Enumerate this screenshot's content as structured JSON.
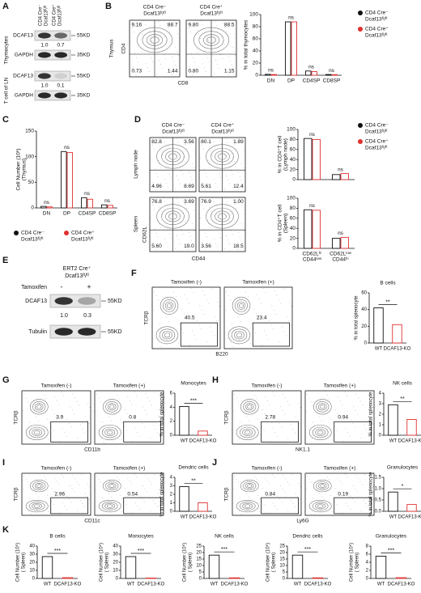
{
  "A": {
    "letter": "A",
    "columns": [
      [
        "CD4 Cre⁻",
        "Dcaf13ᶠˡ/ᶠˡ"
      ],
      [
        "CD4 Cre⁺",
        "Dcaf13ᶠˡ/ᶠˡ"
      ]
    ],
    "groups": [
      "Thymocytes",
      "T cell of LN"
    ],
    "rows": [
      {
        "label": "DCAF13",
        "size": "55KD",
        "ratios": [
          "1.0",
          "0.7"
        ]
      },
      {
        "label": "GAPDH",
        "size": "35KD"
      },
      {
        "label": "DCAF13",
        "size": "55KD",
        "ratios": [
          "1.0",
          "0.1"
        ]
      },
      {
        "label": "GAPDH",
        "size": "35KD"
      }
    ]
  },
  "B": {
    "letter": "B",
    "tissue": "Thymus",
    "ylabel": "CD4",
    "xlabel": "CD8",
    "plots": [
      {
        "header": [
          "CD4 Cre⁻",
          "Dcaf13ᶠˡ/ᶠˡ"
        ],
        "numbers": [
          "9.16",
          "88.7",
          "0.73",
          "1.44"
        ]
      },
      {
        "header": [
          "CD4 Cre⁺",
          "Dcaf13ᶠˡ/ᶠˡ"
        ],
        "numbers": [
          "9.80",
          "88.5",
          "0.80",
          "1.15"
        ]
      }
    ],
    "chart": {
      "type": "bar",
      "ylabel": "% in total thymocytes",
      "categories": [
        "DN",
        "DP",
        "CD4SP",
        "CD8SP"
      ],
      "series": [
        {
          "name": [
            "CD4 Cre⁻",
            "Dcaf13ᶠˡ/ᶠˡ"
          ],
          "color": "#111111",
          "values": [
            1.5,
            88,
            7,
            1.2
          ]
        },
        {
          "name": [
            "CD4 Cre⁺",
            "Dcaf13ᶠˡ/ᶠˡ"
          ],
          "color": "#e03030",
          "values": [
            1.2,
            88,
            6,
            1.0
          ]
        }
      ],
      "ylim": [
        0,
        100
      ],
      "yticks": [
        0,
        20,
        40,
        60,
        80,
        100
      ],
      "sig": [
        "ns",
        "ns",
        "ns",
        "ns"
      ]
    }
  },
  "C": {
    "letter": "C",
    "chart": {
      "type": "bar",
      "ylabel": [
        "Cell Number (10⁶)",
        "(Thymus)"
      ],
      "categories": [
        "DN",
        "DP",
        "CD4SP",
        "CD8SP"
      ],
      "series": [
        {
          "name": [
            "CD4 Cre⁻",
            "Dcaf13ᶠˡ/ᶠˡ"
          ],
          "color": "#111111",
          "values": [
            3,
            110,
            20,
            6
          ]
        },
        {
          "name": [
            "CD4 Cre⁺",
            "Dcaf13ᶠˡ/ᶠˡ"
          ],
          "color": "#e03030",
          "values": [
            2,
            108,
            17,
            5
          ]
        }
      ],
      "ylim": [
        0,
        150
      ],
      "yticks": [
        0,
        50,
        100,
        150
      ],
      "sig": [
        "ns",
        "ns",
        "ns",
        "ns"
      ]
    }
  },
  "D": {
    "letter": "D",
    "tissues": [
      "Lymph node",
      "Spleen"
    ],
    "ylabel": "CD62L",
    "xlabel": "CD44",
    "headers": [
      [
        "CD4 Cre⁻",
        "Dcaf13ᶠˡ/ᶠˡ"
      ],
      [
        "CD4 Cre⁺",
        "Dcaf13ᶠˡ/ᶠˡ"
      ]
    ],
    "plots": [
      [
        "82.8",
        "3.56",
        "4.96",
        "8.69"
      ],
      [
        "80.1",
        "1.89",
        "5.61",
        "12.4"
      ],
      [
        "76.8",
        "3.69",
        "5.60",
        "19.0"
      ],
      [
        "76.9",
        "1.00",
        "3.56",
        "18.5"
      ]
    ],
    "charts": [
      {
        "type": "bar",
        "ylabel": [
          "% in CD4⁺T cell",
          "(Lymph node)"
        ],
        "series": [
          {
            "name": [
              "CD4 Cre⁻",
              "Dcaf13ᶠˡ/ᶠˡ"
            ],
            "color": "#111111",
            "values": [
              82,
              10
            ]
          },
          {
            "name": [
              "CD4 Cre⁺",
              "Dcaf13ᶠˡ/ᶠˡ"
            ],
            "color": "#e03030",
            "values": [
              80,
              12
            ]
          }
        ],
        "ylim": [
          0,
          100
        ],
        "yticks": [
          0,
          20,
          40,
          60,
          80,
          100
        ],
        "sig": [
          "ns",
          "ns"
        ]
      },
      {
        "type": "bar",
        "ylabel": [
          "% in CD4⁺T cell",
          "(Spleen)"
        ],
        "categories": [
          [
            "CD62Lʰⁱ",
            "CD44ˡᵒʷ"
          ],
          [
            "CD62Lˡᵒʷ",
            "CD44ʰⁱ"
          ]
        ],
        "series": [
          {
            "color": "#111111",
            "values": [
              77,
              20
            ]
          },
          {
            "color": "#e03030",
            "values": [
              76,
              22
            ]
          }
        ],
        "ylim": [
          0,
          100
        ],
        "yticks": [
          0,
          20,
          40,
          60,
          80,
          100
        ],
        "sig": [
          "ns",
          "ns"
        ]
      }
    ]
  },
  "E": {
    "letter": "E",
    "genotype": [
      "ERT2 Cre⁺",
      "Dcaf13ᶠˡ/ᶠˡ"
    ],
    "treatment": "Tamoxifen",
    "lanes": [
      "-",
      "+"
    ],
    "rows": [
      {
        "label": "DCAF13",
        "size": "55KD",
        "ratios": [
          "1.0",
          "0.3"
        ]
      },
      {
        "label": "Tubulin",
        "size": "55KD"
      }
    ]
  },
  "F": {
    "letter": "F",
    "ylabel": "TCRβ",
    "xlabel": "B220",
    "plots": [
      {
        "header": "Tamoxifen (-)",
        "number": "40.5"
      },
      {
        "header": "Tamoxifen (+)",
        "number": "23.4"
      }
    ],
    "chart": {
      "type": "bar",
      "title": "B cells",
      "ylabel": "% in total splenocyte",
      "categories": [
        "WT",
        "DCAF13-KO"
      ],
      "values": [
        42,
        22
      ],
      "colors": [
        "#111111",
        "#e03030"
      ],
      "ylim": [
        0,
        60
      ],
      "yticks": [
        0,
        20,
        40,
        60
      ],
      "sig": "**"
    }
  },
  "G": {
    "letter": "G",
    "ylabel": "TCRβ",
    "xlabel": "CD11b",
    "plots": [
      {
        "header": "Tamoxifen (-)",
        "number": "3.9"
      },
      {
        "header": "Tamoxifen (+)",
        "number": "0.8"
      }
    ],
    "chart": {
      "type": "bar",
      "title": "Monocytes",
      "ylabel": "% in total splenocyte",
      "categories": [
        "WT",
        "DCAF13-KO"
      ],
      "values": [
        4.1,
        0.6
      ],
      "colors": [
        "#111111",
        "#e03030"
      ],
      "ylim": [
        0,
        6
      ],
      "yticks": [
        0,
        2,
        4,
        6
      ],
      "sig": "***"
    }
  },
  "H": {
    "letter": "H",
    "ylabel": "TCRβ",
    "xlabel": "NK1.1",
    "plots": [
      {
        "header": "Tamoxifen (-)",
        "number": "2.78"
      },
      {
        "header": "Tamoxifen (+)",
        "number": "0.94"
      }
    ],
    "chart": {
      "type": "bar",
      "title": "NK cells",
      "ylabel": "% in total splenocyte",
      "categories": [
        "WT",
        "DCAF13-KO"
      ],
      "values": [
        2.9,
        1.5
      ],
      "colors": [
        "#111111",
        "#e03030"
      ],
      "ylim": [
        0,
        4
      ],
      "yticks": [
        0,
        1,
        2,
        3,
        4
      ],
      "sig": "**"
    }
  },
  "I": {
    "letter": "I",
    "ylabel": "TCRβ",
    "xlabel": "CD11c",
    "plots": [
      {
        "header": "Tamoxifen (-)",
        "number": "2.96"
      },
      {
        "header": "Tamoxifen (+)",
        "number": "0.54"
      }
    ],
    "chart": {
      "type": "bar",
      "title": "Dendric cells",
      "ylabel": "% in total splenocyte",
      "categories": [
        "WT",
        "DCAF13-KO"
      ],
      "values": [
        2.9,
        1.0
      ],
      "colors": [
        "#111111",
        "#e03030"
      ],
      "ylim": [
        0,
        4
      ],
      "yticks": [
        0,
        1,
        2,
        3,
        4
      ],
      "sig": "**"
    }
  },
  "J": {
    "letter": "J",
    "ylabel": "TCRβ",
    "xlabel": "Ly6G",
    "plots": [
      {
        "header": "Tamoxifen (-)",
        "number": "0.84"
      },
      {
        "header": "Tamoxifen (+)",
        "number": "0.19"
      }
    ],
    "chart": {
      "type": "bar",
      "title": "Granulocytes",
      "ylabel": "% in total splenocyte",
      "categories": [
        "WT",
        "DCAF13-KO"
      ],
      "values": [
        0.85,
        0.3
      ],
      "colors": [
        "#111111",
        "#e03030"
      ],
      "ylim": [
        0,
        1.5
      ],
      "yticks": [
        {
          "value": 0,
          "label": "0.0"
        },
        0.5,
        {
          "value": 1,
          "label": "1.0"
        },
        1.5
      ],
      "sig": "*"
    }
  },
  "K": {
    "letter": "K",
    "charts": [
      {
        "type": "bar",
        "title": "B cells",
        "ylabel": [
          "Cell Number (10⁶)",
          "( Spleen)"
        ],
        "categories": [
          "WT",
          "DCAF13-KO"
        ],
        "values": [
          27,
          1
        ],
        "colors": [
          "#111111",
          "#e03030"
        ],
        "ylim": [
          0,
          40
        ],
        "yticks": [
          0,
          10,
          20,
          30,
          40
        ],
        "sig": "***"
      },
      {
        "type": "bar",
        "title": "Monocytes",
        "ylabel": [
          "Cell Number (10⁶)",
          "( Spleen)"
        ],
        "categories": [
          "WT",
          "DCAF13-KO"
        ],
        "values": [
          27,
          0.5
        ],
        "colors": [
          "#111111",
          "#e03030"
        ],
        "ylim": [
          0,
          40
        ],
        "yticks": [
          0,
          10,
          20,
          30,
          40
        ],
        "sig": "***"
      },
      {
        "type": "bar",
        "title": "NK cells",
        "ylabel": [
          "Cell Number (10⁶)",
          "( Spleen)"
        ],
        "categories": [
          "WT",
          "DCAF13-KO"
        ],
        "values": [
          18,
          0.5
        ],
        "colors": [
          "#111111",
          "#e03030"
        ],
        "ylim": [
          0,
          25
        ],
        "yticks": [
          0,
          5,
          10,
          15,
          20,
          25
        ],
        "sig": "***"
      },
      {
        "type": "bar",
        "title": "Dendric cells",
        "ylabel": [
          "Cell Number (10⁶)",
          "( Spleen)"
        ],
        "categories": [
          "WT",
          "DCAF13-KO"
        ],
        "values": [
          18,
          0.5
        ],
        "colors": [
          "#111111",
          "#e03030"
        ],
        "ylim": [
          0,
          25
        ],
        "yticks": [
          0,
          5,
          10,
          15,
          20,
          25
        ],
        "sig": "***"
      },
      {
        "type": "bar",
        "title": "Granulocytes",
        "ylabel": [
          "Cell Number (10⁶)",
          "( Spleen)"
        ],
        "categories": [
          "WT",
          "DCAF13-KO"
        ],
        "values": [
          5.5,
          0.2
        ],
        "colors": [
          "#111111",
          "#e03030"
        ],
        "ylim": [
          0,
          8
        ],
        "yticks": [
          0,
          2,
          4,
          6,
          8
        ],
        "sig": "***"
      }
    ]
  }
}
